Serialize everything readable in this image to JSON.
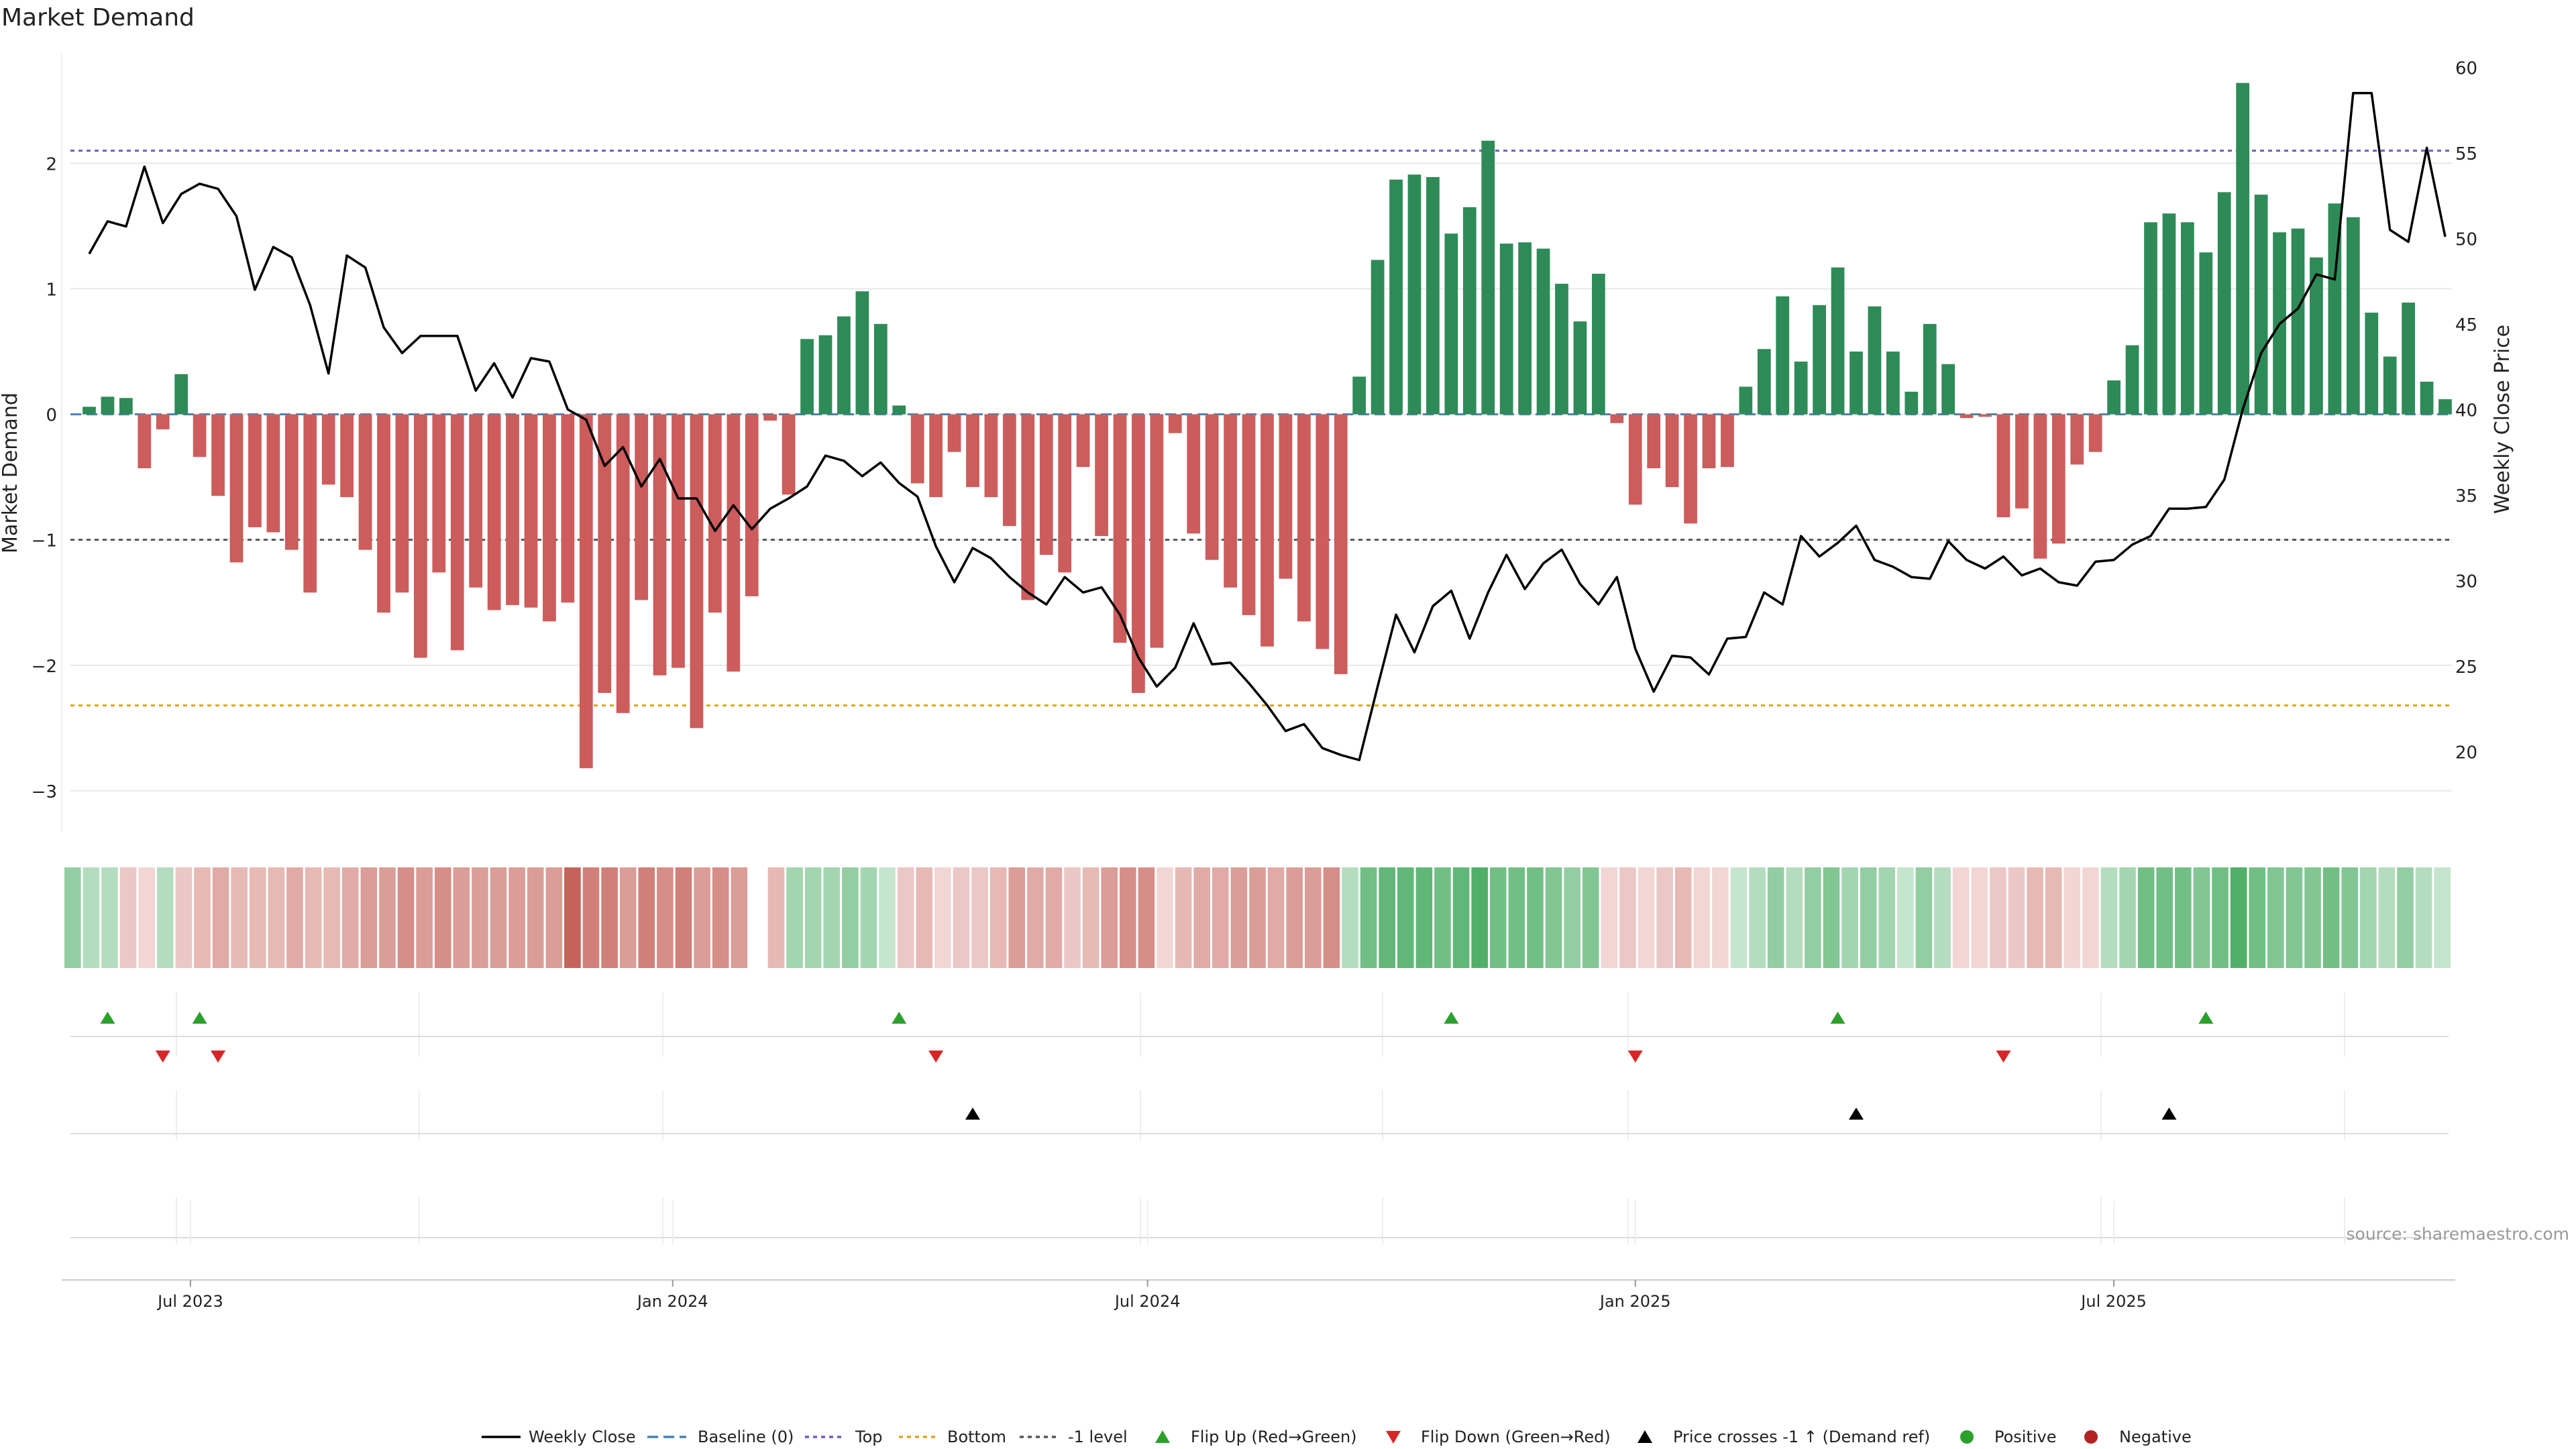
{
  "chart_data": {
    "type": "bar",
    "title": "Market Demand",
    "ylabel": "Market Demand",
    "y2label": "Weekly Close Price",
    "ylim": [
      -3.3,
      2.9
    ],
    "y2lim": [
      15.5,
      61
    ],
    "yticks": [
      2,
      1,
      0,
      -1,
      -2,
      -3
    ],
    "yticklabels": [
      "2",
      "1",
      "0",
      "−1",
      "−2",
      "−3"
    ],
    "y2ticks": [
      60,
      55,
      50,
      45,
      40,
      35,
      30,
      25,
      20
    ],
    "xlim": [
      0,
      129
    ],
    "xticks": [
      {
        "label": "Jul 2023",
        "week": 5.5
      },
      {
        "label": "Jan 2024",
        "week": 31.7
      },
      {
        "label": "Jul 2024",
        "week": 57.5
      },
      {
        "label": "Jan 2025",
        "week": 84.0
      },
      {
        "label": "Jul 2025",
        "week": 110.0
      }
    ],
    "reference_lines": {
      "top": 2.1,
      "bottom": -2.32,
      "minus_one": -1.0,
      "baseline": 0
    },
    "demand": [
      0.06,
      0.14,
      0.13,
      -0.43,
      -0.12,
      0.32,
      -0.34,
      -0.65,
      -1.18,
      -0.9,
      -0.94,
      -1.08,
      -1.42,
      -0.56,
      -0.66,
      -1.08,
      -1.58,
      -1.42,
      -1.94,
      -1.26,
      -1.88,
      -1.38,
      -1.56,
      -1.52,
      -1.54,
      -1.65,
      -1.5,
      -2.82,
      -2.22,
      -2.38,
      -1.48,
      -2.08,
      -2.02,
      -2.5,
      -1.58,
      -2.05,
      -1.45,
      -0.05,
      -0.64,
      0.6,
      0.63,
      0.78,
      0.98,
      0.72,
      0.07,
      -0.55,
      -0.66,
      -0.3,
      -0.58,
      -0.66,
      -0.89,
      -1.48,
      -1.12,
      -1.26,
      -0.42,
      -0.97,
      -1.82,
      -2.22,
      -1.86,
      -0.15,
      -0.95,
      -1.16,
      -1.38,
      -1.6,
      -1.85,
      -1.31,
      -1.65,
      -1.87,
      -2.07,
      0.3,
      1.23,
      1.87,
      1.91,
      1.89,
      1.44,
      1.65,
      2.18,
      1.36,
      1.37,
      1.32,
      1.04,
      0.74,
      1.12,
      -0.07,
      -0.72,
      -0.43,
      -0.58,
      -0.87,
      -0.43,
      -0.42,
      0.22,
      0.52,
      0.94,
      0.42,
      0.87,
      1.17,
      0.5,
      0.86,
      0.5,
      0.18,
      0.72,
      0.4,
      -0.03,
      -0.02,
      -0.82,
      -0.75,
      -1.15,
      -1.03,
      -0.4,
      -0.3,
      0.27,
      0.55,
      1.53,
      1.6,
      1.53,
      1.29,
      1.77,
      2.64,
      1.75,
      1.45,
      1.48,
      1.25,
      1.68,
      1.57,
      0.81,
      0.46,
      0.89,
      0.26,
      0.12
    ],
    "price_x": [
      0,
      1,
      2,
      3,
      4,
      5,
      6,
      7,
      8,
      9,
      10,
      11,
      12,
      13,
      14,
      15,
      16,
      17,
      18,
      19,
      20,
      21,
      22,
      23,
      24,
      25,
      26,
      27,
      28,
      29,
      30,
      31,
      32,
      33,
      34,
      35,
      36,
      37,
      38,
      39,
      40,
      41,
      42,
      43,
      44,
      45,
      46,
      47,
      48,
      49,
      50,
      51,
      52,
      53,
      54,
      55,
      56,
      57,
      58,
      59,
      60,
      61,
      62,
      63,
      64,
      65,
      66,
      67,
      68,
      69,
      70,
      71,
      72,
      73,
      74,
      75,
      76,
      77,
      78,
      79,
      80,
      81,
      82,
      83,
      84,
      85,
      86,
      87,
      88,
      89,
      90,
      91,
      92,
      93,
      94,
      95,
      96,
      97,
      98,
      99,
      100,
      101,
      102,
      103,
      104,
      105,
      106,
      107,
      108,
      109,
      110,
      111,
      112,
      113,
      114,
      115,
      116,
      117,
      118,
      119,
      120,
      121,
      122,
      123,
      124,
      125,
      126,
      127,
      128
    ],
    "weekly_close": [
      49.1,
      51.0,
      50.7,
      54.2,
      50.9,
      52.6,
      53.2,
      52.9,
      51.3,
      47.0,
      49.5,
      48.9,
      46.1,
      42.1,
      49.0,
      48.3,
      44.8,
      43.3,
      44.3,
      44.3,
      44.3,
      41.1,
      42.7,
      40.7,
      43.0,
      42.8,
      40.0,
      39.4,
      36.7,
      37.8,
      35.5,
      37.1,
      34.8,
      34.8,
      32.9,
      34.4,
      33.0,
      34.2,
      34.8,
      35.5,
      37.3,
      37.0,
      36.1,
      36.9,
      35.7,
      34.9,
      32.0,
      29.9,
      31.9,
      31.3,
      30.2,
      29.3,
      28.6,
      30.2,
      29.3,
      29.6,
      28.0,
      25.5,
      23.8,
      24.9,
      27.5,
      25.1,
      25.2,
      24.0,
      22.7,
      21.2,
      21.6,
      20.2,
      19.8,
      19.5,
      23.8,
      28.0,
      25.8,
      28.5,
      29.4,
      26.6,
      29.3,
      31.5,
      29.5,
      31.0,
      31.8,
      29.8,
      28.6,
      30.2,
      26.0,
      23.5,
      25.6,
      25.5,
      24.5,
      26.6,
      26.7,
      29.3,
      28.6,
      32.6,
      31.4,
      32.2,
      33.2,
      31.2,
      30.8,
      30.2,
      30.1,
      32.3,
      31.2,
      30.7,
      31.4,
      30.3,
      30.7,
      29.9,
      29.7,
      31.1,
      31.2,
      32.1,
      32.6,
      34.2,
      34.2,
      34.3,
      35.9,
      40.0,
      43.3,
      45.0,
      45.9,
      47.9,
      47.6,
      58.5,
      58.5,
      50.5,
      49.8,
      55.3,
      50.1,
      49.9
    ],
    "heatmap_levels": [
      0.5,
      0.3,
      0.3,
      0.2,
      0.1,
      0.3,
      0.2,
      0.3,
      0.4,
      0.3,
      0.3,
      0.3,
      0.4,
      0.3,
      0.3,
      0.4,
      0.5,
      0.5,
      0.6,
      0.5,
      0.6,
      0.5,
      0.5,
      0.5,
      0.5,
      0.5,
      0.5,
      0.9,
      0.7,
      0.7,
      0.5,
      0.7,
      0.6,
      0.7,
      0.5,
      0.6,
      0.5,
      null,
      0.3,
      0.4,
      0.4,
      0.4,
      0.5,
      0.4,
      0.2,
      0.2,
      0.3,
      0.1,
      0.2,
      0.2,
      0.3,
      0.5,
      0.4,
      0.4,
      0.2,
      0.3,
      0.5,
      0.6,
      0.6,
      0.1,
      0.3,
      0.4,
      0.4,
      0.5,
      0.5,
      0.4,
      0.5,
      0.5,
      0.6,
      0.3,
      0.7,
      0.8,
      0.8,
      0.8,
      0.7,
      0.8,
      0.9,
      0.7,
      0.7,
      0.7,
      0.6,
      0.5,
      0.6,
      0.1,
      0.2,
      0.1,
      0.2,
      0.3,
      0.1,
      0.1,
      0.2,
      0.3,
      0.5,
      0.3,
      0.5,
      0.6,
      0.4,
      0.5,
      0.4,
      0.2,
      0.5,
      0.3,
      0.1,
      0.1,
      0.2,
      0.2,
      0.3,
      0.3,
      0.1,
      0.1,
      0.3,
      0.4,
      0.7,
      0.7,
      0.7,
      0.6,
      0.7,
      0.9,
      0.7,
      0.6,
      0.6,
      0.6,
      0.7,
      0.6,
      0.4,
      0.3,
      0.5,
      0.3,
      0.2
    ],
    "flip_up_weeks": [
      1,
      6,
      44,
      74,
      95,
      115
    ],
    "flip_down_weeks": [
      4,
      7,
      46,
      84,
      104
    ],
    "price_cross_weeks": [
      48,
      96,
      113
    ],
    "legend": [
      "Weekly Close",
      "Baseline (0)",
      "Top",
      "Bottom",
      "-1 level",
      "Flip Up (Red→Green)",
      "Flip Down (Green→Red)",
      "Price crosses -1 ↑ (Demand ref)",
      "Positive",
      "Negative"
    ],
    "source": "source: sharemaestro.com",
    "colors": {
      "positive": "#2e8b57",
      "negative": "#cd5c5c",
      "top_line": "#6a5acd",
      "bottom_line": "#daa520",
      "minus_one_line": "#555555",
      "baseline": "#4682b4",
      "price": "#000000",
      "flip_up": "#2ca02c",
      "flip_down": "#d62728",
      "cross": "#000000",
      "legend_positive": "#2ca02c",
      "legend_negative": "#b22222"
    }
  }
}
